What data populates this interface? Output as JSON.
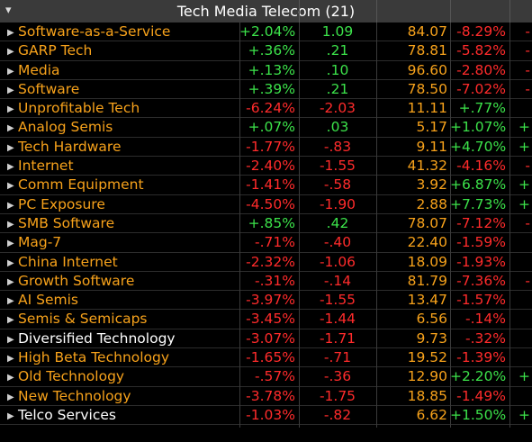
{
  "header": {
    "arrow": "▾",
    "title": "Tech Media Telecom (21)"
  },
  "rows": [
    {
      "name": "Software-as-a-Service",
      "name_color": "orange",
      "chg": "+2.04%",
      "chg_sign": "pos",
      "val": "1.09",
      "val_sign": "pos",
      "price": "84.07",
      "pct": "-8.29%",
      "pct_sign": "neg",
      "extra": "-",
      "extra_sign": "neg"
    },
    {
      "name": "GARP Tech",
      "name_color": "orange",
      "chg": "+.36%",
      "chg_sign": "pos",
      "val": ".21",
      "val_sign": "pos",
      "price": "78.81",
      "pct": "-5.82%",
      "pct_sign": "neg",
      "extra": "-",
      "extra_sign": "neg"
    },
    {
      "name": "Media",
      "name_color": "orange",
      "chg": "+.13%",
      "chg_sign": "pos",
      "val": ".10",
      "val_sign": "pos",
      "price": "96.60",
      "pct": "-2.80%",
      "pct_sign": "neg",
      "extra": "-",
      "extra_sign": "neg"
    },
    {
      "name": "Software",
      "name_color": "orange",
      "chg": "+.39%",
      "chg_sign": "pos",
      "val": ".21",
      "val_sign": "pos",
      "price": "78.50",
      "pct": "-7.02%",
      "pct_sign": "neg",
      "extra": "-",
      "extra_sign": "neg"
    },
    {
      "name": "Unprofitable Tech",
      "name_color": "orange",
      "chg": "-6.24%",
      "chg_sign": "neg",
      "val": "-2.03",
      "val_sign": "neg",
      "price": "11.11",
      "pct": "+.77%",
      "pct_sign": "pos",
      "extra": "",
      "extra_sign": "pos"
    },
    {
      "name": "Analog Semis",
      "name_color": "orange",
      "chg": "+.07%",
      "chg_sign": "pos",
      "val": ".03",
      "val_sign": "pos",
      "price": "5.17",
      "pct": "+1.07%",
      "pct_sign": "pos",
      "extra": "+",
      "extra_sign": "pos"
    },
    {
      "name": "Tech Hardware",
      "name_color": "orange",
      "chg": "-1.77%",
      "chg_sign": "neg",
      "val": "-.83",
      "val_sign": "neg",
      "price": "9.11",
      "pct": "+4.70%",
      "pct_sign": "pos",
      "extra": "+",
      "extra_sign": "pos"
    },
    {
      "name": "Internet",
      "name_color": "orange",
      "chg": "-2.40%",
      "chg_sign": "neg",
      "val": "-1.55",
      "val_sign": "neg",
      "price": "41.32",
      "pct": "-4.16%",
      "pct_sign": "neg",
      "extra": "-",
      "extra_sign": "neg"
    },
    {
      "name": "Comm Equipment",
      "name_color": "orange",
      "chg": "-1.41%",
      "chg_sign": "neg",
      "val": "-.58",
      "val_sign": "neg",
      "price": "3.92",
      "pct": "+6.87%",
      "pct_sign": "pos",
      "extra": "+",
      "extra_sign": "pos"
    },
    {
      "name": "PC Exposure",
      "name_color": "orange",
      "chg": "-4.50%",
      "chg_sign": "neg",
      "val": "-1.90",
      "val_sign": "neg",
      "price": "2.88",
      "pct": "+7.73%",
      "pct_sign": "pos",
      "extra": "+",
      "extra_sign": "pos"
    },
    {
      "name": "SMB Software",
      "name_color": "orange",
      "chg": "+.85%",
      "chg_sign": "pos",
      "val": ".42",
      "val_sign": "pos",
      "price": "78.07",
      "pct": "-7.12%",
      "pct_sign": "neg",
      "extra": "-",
      "extra_sign": "neg"
    },
    {
      "name": "Mag-7",
      "name_color": "orange",
      "chg": "-.71%",
      "chg_sign": "neg",
      "val": "-.40",
      "val_sign": "neg",
      "price": "22.40",
      "pct": "-1.59%",
      "pct_sign": "neg",
      "extra": "",
      "extra_sign": "neg"
    },
    {
      "name": "China Internet",
      "name_color": "orange",
      "chg": "-2.32%",
      "chg_sign": "neg",
      "val": "-1.06",
      "val_sign": "neg",
      "price": "18.09",
      "pct": "-1.93%",
      "pct_sign": "neg",
      "extra": "",
      "extra_sign": "neg"
    },
    {
      "name": "Growth Software",
      "name_color": "orange",
      "chg": "-.31%",
      "chg_sign": "neg",
      "val": "-.14",
      "val_sign": "neg",
      "price": "81.79",
      "pct": "-7.36%",
      "pct_sign": "neg",
      "extra": "-",
      "extra_sign": "neg"
    },
    {
      "name": "AI Semis",
      "name_color": "orange",
      "chg": "-3.97%",
      "chg_sign": "neg",
      "val": "-1.55",
      "val_sign": "neg",
      "price": "13.47",
      "pct": "-1.57%",
      "pct_sign": "neg",
      "extra": "",
      "extra_sign": "neg"
    },
    {
      "name": "Semis & Semicaps",
      "name_color": "orange",
      "chg": "-3.45%",
      "chg_sign": "neg",
      "val": "-1.44",
      "val_sign": "neg",
      "price": "6.56",
      "pct": "-.14%",
      "pct_sign": "neg",
      "extra": "",
      "extra_sign": "neg"
    },
    {
      "name": "Diversified Technology",
      "name_color": "white",
      "chg": "-3.07%",
      "chg_sign": "neg",
      "val": "-1.71",
      "val_sign": "neg",
      "price": "9.73",
      "pct": "-.32%",
      "pct_sign": "neg",
      "extra": "",
      "extra_sign": "neg"
    },
    {
      "name": "High Beta Technology",
      "name_color": "orange",
      "chg": "-1.65%",
      "chg_sign": "neg",
      "val": "-.71",
      "val_sign": "neg",
      "price": "19.52",
      "pct": "-1.39%",
      "pct_sign": "neg",
      "extra": "",
      "extra_sign": "neg"
    },
    {
      "name": "Old Technology",
      "name_color": "orange",
      "chg": "-.57%",
      "chg_sign": "neg",
      "val": "-.36",
      "val_sign": "neg",
      "price": "12.90",
      "pct": "+2.20%",
      "pct_sign": "pos",
      "extra": "+",
      "extra_sign": "pos"
    },
    {
      "name": "New Technology",
      "name_color": "orange",
      "chg": "-3.78%",
      "chg_sign": "neg",
      "val": "-1.75",
      "val_sign": "neg",
      "price": "18.85",
      "pct": "-1.49%",
      "pct_sign": "neg",
      "extra": "",
      "extra_sign": "neg"
    },
    {
      "name": "Telco Services",
      "name_color": "white",
      "chg": "-1.03%",
      "chg_sign": "neg",
      "val": "-.82",
      "val_sign": "neg",
      "price": "6.62",
      "pct": "+1.50%",
      "pct_sign": "pos",
      "extra": "+",
      "extra_sign": "pos"
    }
  ],
  "icons": {
    "row_expand": "triangle-right-icon",
    "header_collapse": "triangle-down-icon"
  }
}
